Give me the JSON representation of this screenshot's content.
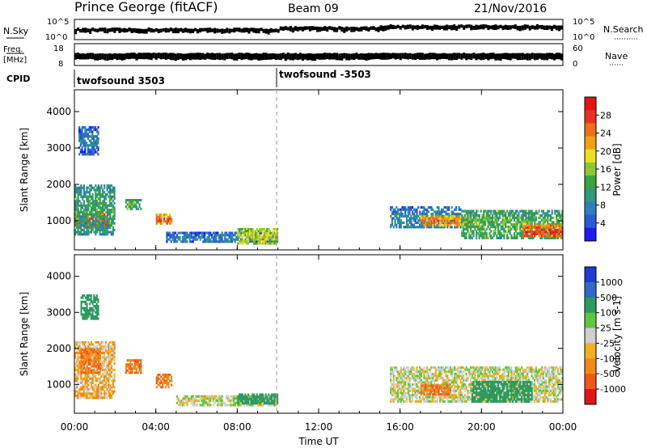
{
  "header": {
    "station": "Prince George (fitACF)",
    "beam": "Beam 09",
    "date": "21/Nov/2016"
  },
  "status_panels": {
    "nsky_label": "N.Sky",
    "nsky_ticks": [
      "10^5",
      "10^0"
    ],
    "nsearch_label": "N.Search",
    "nsearch_ticks": [
      "10^5",
      "10^0"
    ],
    "freq_label": "Freq.",
    "freq_unit": "[MHz]",
    "freq_ticks": [
      "18",
      "8"
    ],
    "nave_label": "Nave",
    "nave_ticks": [
      "60",
      "0"
    ],
    "cpid_label": "CPID",
    "cpid_segments": [
      {
        "label": "twofsound 3503",
        "start_hour": 0
      },
      {
        "label": "twofsound -3503",
        "start_hour": 10
      }
    ]
  },
  "chart_data": [
    {
      "type": "heatmap",
      "name": "power",
      "ylabel": "Slant Range [km]",
      "xlabel": "",
      "xlim": [
        0,
        24
      ],
      "ylim": [
        200,
        4600
      ],
      "yticks": [
        1000,
        2000,
        3000,
        4000
      ],
      "colorbar": {
        "label": "Power [dB]",
        "range": [
          0,
          32
        ],
        "ticks": [
          "4",
          "8",
          "12",
          "16",
          "20",
          "24",
          "28"
        ],
        "colors": [
          "#1c1cf0",
          "#2a5bd7",
          "#2f7fb8",
          "#2e9a7c",
          "#3aa33a",
          "#8cc832",
          "#e8e020",
          "#f0a014",
          "#f06e1a",
          "#e63222",
          "#e01616"
        ]
      },
      "regions": [
        {
          "t0": 0.0,
          "t1": 1.8,
          "r0": 800,
          "r1": 1200,
          "level": 27
        },
        {
          "t0": 0.0,
          "t1": 2.0,
          "r0": 600,
          "r1": 2000,
          "level": 12
        },
        {
          "t0": 0.2,
          "t1": 1.2,
          "r0": 2800,
          "r1": 3600,
          "level": 8
        },
        {
          "t0": 2.5,
          "t1": 3.3,
          "r0": 1300,
          "r1": 1600,
          "level": 14
        },
        {
          "t0": 4.0,
          "t1": 4.8,
          "r0": 900,
          "r1": 1200,
          "level": 25
        },
        {
          "t0": 4.5,
          "t1": 10.0,
          "r0": 400,
          "r1": 700,
          "level": 8
        },
        {
          "t0": 8.0,
          "t1": 10.0,
          "r0": 350,
          "r1": 800,
          "level": 18
        },
        {
          "t0": 15.5,
          "t1": 19.0,
          "r0": 800,
          "r1": 1400,
          "level": 9
        },
        {
          "t0": 17.0,
          "t1": 19.5,
          "r0": 850,
          "r1": 1150,
          "level": 24
        },
        {
          "t0": 19.0,
          "t1": 24.0,
          "r0": 500,
          "r1": 1300,
          "level": 14
        },
        {
          "t0": 22.0,
          "t1": 24.0,
          "r0": 550,
          "r1": 900,
          "level": 27
        }
      ]
    },
    {
      "type": "heatmap",
      "name": "velocity",
      "ylabel": "Slant Range [km]",
      "xlabel": "Time UT",
      "xlim": [
        0,
        24
      ],
      "ylim": [
        200,
        4600
      ],
      "yticks": [
        1000,
        2000,
        3000,
        4000
      ],
      "xticks": [
        "00:00",
        "04:00",
        "08:00",
        "12:00",
        "16:00",
        "20:00",
        "00:00"
      ],
      "colorbar": {
        "label": "Velocity [m s-1]",
        "ticks": [
          "1000",
          "500",
          "100",
          "25",
          "-25",
          "-100",
          "-500",
          "-1000"
        ],
        "colors": [
          "#1c3cd0",
          "#3268c8",
          "#2e9a60",
          "#5cc840",
          "#cfcfcf",
          "#f0b020",
          "#f08a18",
          "#f05a18",
          "#e01616"
        ]
      },
      "regions": [
        {
          "t0": 0.0,
          "t1": 2.0,
          "r0": 600,
          "r1": 2200,
          "v": -50
        },
        {
          "t0": 0.3,
          "t1": 1.3,
          "r0": 1300,
          "r1": 2000,
          "v": -300
        },
        {
          "t0": 0.3,
          "t1": 1.2,
          "r0": 2800,
          "r1": 3500,
          "v": 200
        },
        {
          "t0": 2.5,
          "t1": 3.3,
          "r0": 1300,
          "r1": 1700,
          "v": -300
        },
        {
          "t0": 4.0,
          "t1": 4.8,
          "r0": 900,
          "r1": 1300,
          "v": -300
        },
        {
          "t0": 5.0,
          "t1": 10.0,
          "r0": 400,
          "r1": 700,
          "v": 0
        },
        {
          "t0": 8.0,
          "t1": 10.0,
          "r0": 450,
          "r1": 750,
          "v": 200
        },
        {
          "t0": 15.5,
          "t1": 24.0,
          "r0": 500,
          "r1": 1500,
          "v": 0
        },
        {
          "t0": 19.5,
          "t1": 22.5,
          "r0": 500,
          "r1": 1100,
          "v": 200
        },
        {
          "t0": 17.0,
          "t1": 18.5,
          "r0": 700,
          "r1": 1000,
          "v": -300
        }
      ]
    }
  ]
}
